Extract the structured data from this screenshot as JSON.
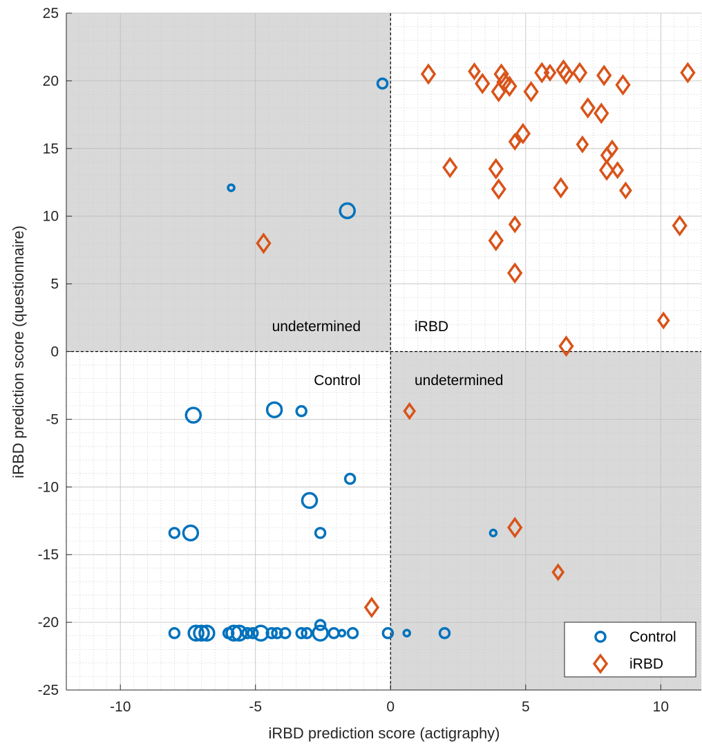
{
  "chart_data": {
    "type": "scatter",
    "xlabel": "iRBD prediction score (actigraphy)",
    "ylabel": "iRBD prediction score (questionnaire)",
    "xlim": [
      -12,
      11.5
    ],
    "ylim": [
      -25,
      25
    ],
    "xticks": [
      -10,
      -5,
      0,
      5,
      10
    ],
    "yticks": [
      -25,
      -20,
      -15,
      -10,
      -5,
      0,
      5,
      10,
      15,
      20,
      25
    ],
    "grid": "minor",
    "legend_position": "bottom-right",
    "quadrant_labels": {
      "upper_left": "undetermined",
      "upper_right": "iRBD",
      "lower_left": "Control",
      "lower_right": "undetermined"
    },
    "shaded_quadrants": [
      "upper-left",
      "lower-right"
    ],
    "series": [
      {
        "name": "Control",
        "marker": "circle",
        "color": "#0072BD",
        "points": [
          {
            "x": -0.3,
            "y": 19.8,
            "s": 1
          },
          {
            "x": -5.9,
            "y": 12.1,
            "s": 0
          },
          {
            "x": -1.6,
            "y": 10.4,
            "s": 2
          },
          {
            "x": -7.3,
            "y": -4.7,
            "s": 2
          },
          {
            "x": -4.3,
            "y": -4.3,
            "s": 2
          },
          {
            "x": -3.3,
            "y": -4.4,
            "s": 1
          },
          {
            "x": -1.5,
            "y": -9.4,
            "s": 1
          },
          {
            "x": -3.0,
            "y": -11.0,
            "s": 2
          },
          {
            "x": -8.0,
            "y": -13.4,
            "s": 1
          },
          {
            "x": -7.4,
            "y": -13.4,
            "s": 2
          },
          {
            "x": -2.6,
            "y": -13.4,
            "s": 1
          },
          {
            "x": 3.8,
            "y": -13.4,
            "s": 0
          },
          {
            "x": -8.0,
            "y": -20.8,
            "s": 1
          },
          {
            "x": -7.2,
            "y": -20.8,
            "s": 2
          },
          {
            "x": -7.0,
            "y": -20.8,
            "s": 2
          },
          {
            "x": -6.8,
            "y": -20.8,
            "s": 2
          },
          {
            "x": -6.0,
            "y": -20.8,
            "s": 1
          },
          {
            "x": -5.8,
            "y": -20.8,
            "s": 2
          },
          {
            "x": -5.6,
            "y": -20.8,
            "s": 2
          },
          {
            "x": -5.3,
            "y": -20.8,
            "s": 1
          },
          {
            "x": -5.1,
            "y": -20.8,
            "s": 1
          },
          {
            "x": -4.8,
            "y": -20.8,
            "s": 2
          },
          {
            "x": -4.4,
            "y": -20.8,
            "s": 1
          },
          {
            "x": -4.2,
            "y": -20.8,
            "s": 1
          },
          {
            "x": -3.9,
            "y": -20.8,
            "s": 1
          },
          {
            "x": -3.3,
            "y": -20.8,
            "s": 1
          },
          {
            "x": -3.1,
            "y": -20.8,
            "s": 1
          },
          {
            "x": -2.6,
            "y": -20.2,
            "s": 1
          },
          {
            "x": -2.6,
            "y": -20.8,
            "s": 2
          },
          {
            "x": -2.1,
            "y": -20.8,
            "s": 1
          },
          {
            "x": -1.8,
            "y": -20.8,
            "s": 0
          },
          {
            "x": -1.4,
            "y": -20.8,
            "s": 1
          },
          {
            "x": -0.1,
            "y": -20.8,
            "s": 1
          },
          {
            "x": 0.6,
            "y": -20.8,
            "s": 0
          },
          {
            "x": 2.0,
            "y": -20.8,
            "s": 1
          }
        ]
      },
      {
        "name": "iRBD",
        "marker": "diamond",
        "color": "#D95319",
        "points": [
          {
            "x": 1.4,
            "y": 20.5,
            "s": 2
          },
          {
            "x": 3.1,
            "y": 20.7,
            "s": 1
          },
          {
            "x": 3.4,
            "y": 19.8,
            "s": 2
          },
          {
            "x": 4.1,
            "y": 20.5,
            "s": 2
          },
          {
            "x": 4.2,
            "y": 19.9,
            "s": 2
          },
          {
            "x": 4.4,
            "y": 19.6,
            "s": 2
          },
          {
            "x": 4.0,
            "y": 19.2,
            "s": 2
          },
          {
            "x": 5.2,
            "y": 19.2,
            "s": 2
          },
          {
            "x": 5.6,
            "y": 20.6,
            "s": 2
          },
          {
            "x": 5.9,
            "y": 20.6,
            "s": 1
          },
          {
            "x": 6.4,
            "y": 20.8,
            "s": 2
          },
          {
            "x": 6.5,
            "y": 20.5,
            "s": 2
          },
          {
            "x": 7.0,
            "y": 20.6,
            "s": 2
          },
          {
            "x": 7.9,
            "y": 20.4,
            "s": 2
          },
          {
            "x": 8.6,
            "y": 19.7,
            "s": 2
          },
          {
            "x": 11.0,
            "y": 20.6,
            "s": 2
          },
          {
            "x": 7.3,
            "y": 18.0,
            "s": 2
          },
          {
            "x": 7.8,
            "y": 17.6,
            "s": 2
          },
          {
            "x": 4.9,
            "y": 16.1,
            "s": 2
          },
          {
            "x": 4.6,
            "y": 15.5,
            "s": 1
          },
          {
            "x": 7.1,
            "y": 15.3,
            "s": 1
          },
          {
            "x": 8.2,
            "y": 15.0,
            "s": 1
          },
          {
            "x": 8.0,
            "y": 14.5,
            "s": 1
          },
          {
            "x": 2.2,
            "y": 13.6,
            "s": 2
          },
          {
            "x": 3.9,
            "y": 13.5,
            "s": 2
          },
          {
            "x": 8.0,
            "y": 13.4,
            "s": 2
          },
          {
            "x": 8.4,
            "y": 13.4,
            "s": 1
          },
          {
            "x": 6.3,
            "y": 12.1,
            "s": 2
          },
          {
            "x": 4.0,
            "y": 12.0,
            "s": 2
          },
          {
            "x": 8.7,
            "y": 11.9,
            "s": 1
          },
          {
            "x": 4.6,
            "y": 9.4,
            "s": 1
          },
          {
            "x": 10.7,
            "y": 9.3,
            "s": 2
          },
          {
            "x": 3.9,
            "y": 8.2,
            "s": 2
          },
          {
            "x": -4.7,
            "y": 8.0,
            "s": 2
          },
          {
            "x": 4.6,
            "y": 5.8,
            "s": 2
          },
          {
            "x": 10.1,
            "y": 2.3,
            "s": 1
          },
          {
            "x": 6.5,
            "y": 0.4,
            "s": 2
          },
          {
            "x": 0.7,
            "y": -4.4,
            "s": 1
          },
          {
            "x": 4.6,
            "y": -13.0,
            "s": 2
          },
          {
            "x": 6.2,
            "y": -16.3,
            "s": 1
          },
          {
            "x": -0.7,
            "y": -18.9,
            "s": 2
          }
        ]
      }
    ]
  }
}
